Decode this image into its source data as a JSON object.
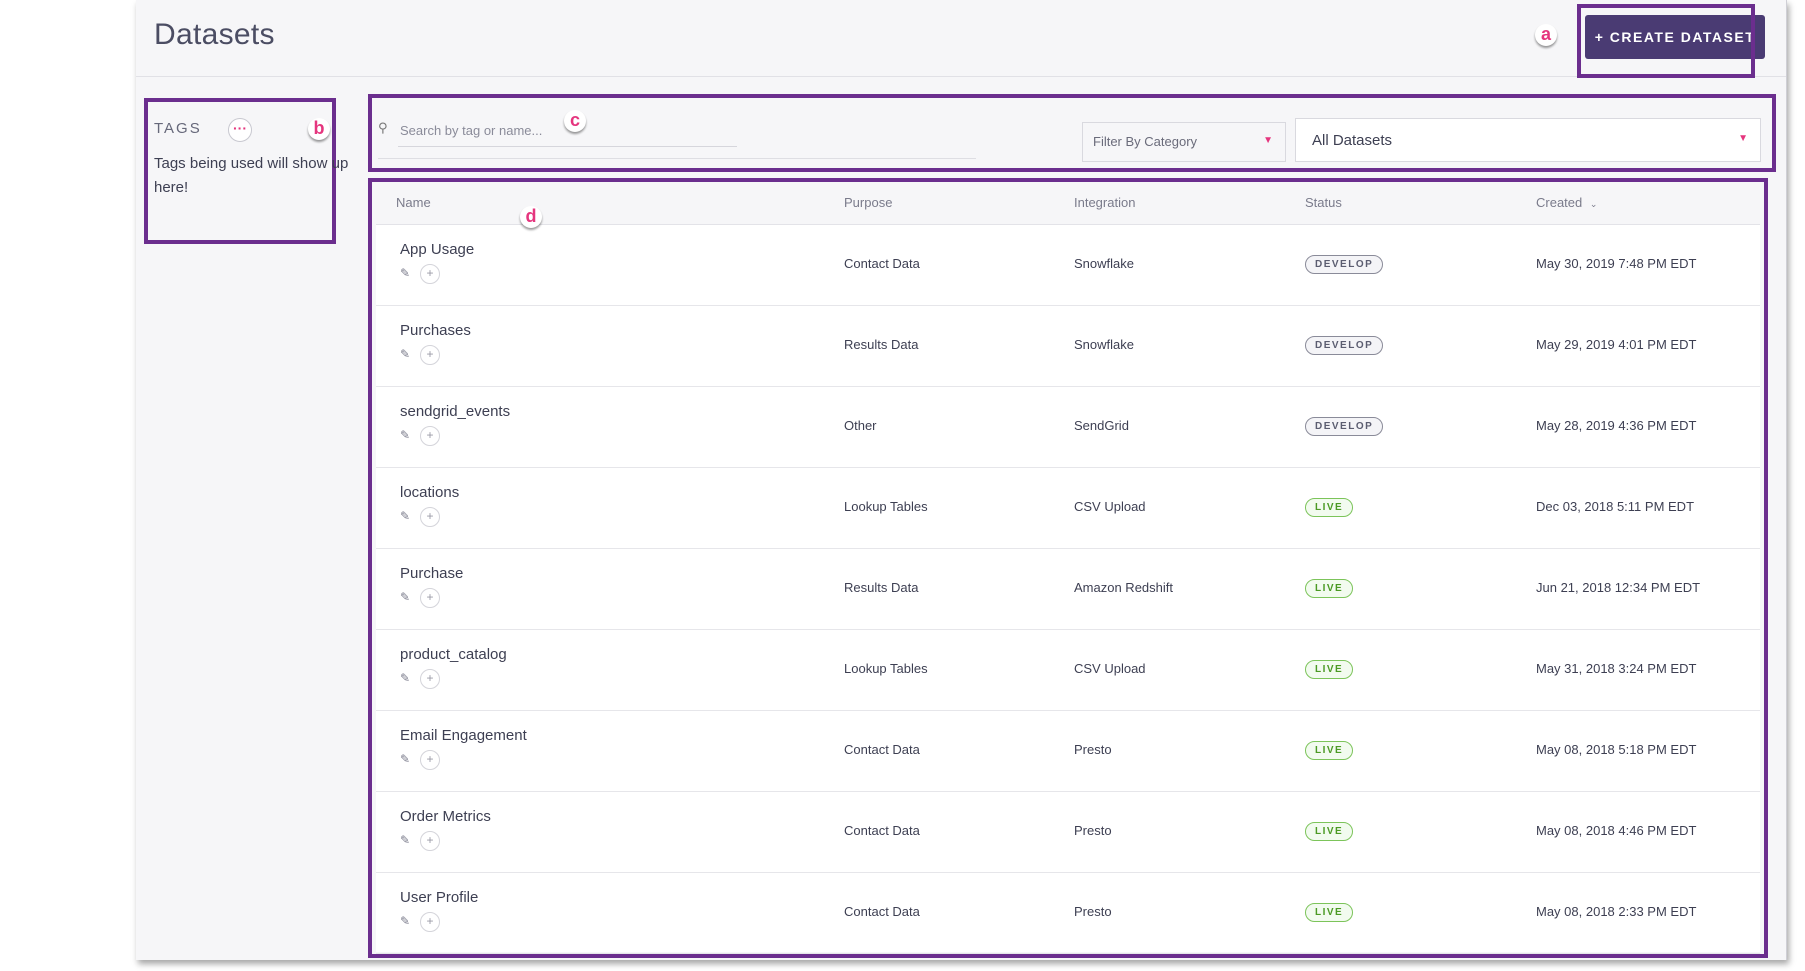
{
  "header": {
    "title": "Datasets",
    "create_label": "+ CREATE DATASET"
  },
  "markers": {
    "a": "a",
    "b": "b",
    "c": "c",
    "d": "d"
  },
  "tags": {
    "title": "TAGS",
    "more_label": "···",
    "empty_text": "Tags being used will show up here!"
  },
  "toolbar": {
    "search_placeholder": "Search by tag or name...",
    "category_filter": "Filter By Category",
    "dataset_filter": "All Datasets"
  },
  "table": {
    "columns": {
      "name": "Name",
      "purpose": "Purpose",
      "integration": "Integration",
      "status": "Status",
      "created": "Created"
    },
    "rows": [
      {
        "name": "App Usage",
        "purpose": "Contact Data",
        "integration": "Snowflake",
        "status": "DEVELOP",
        "created": "May 30, 2019 7:48 PM EDT"
      },
      {
        "name": "Purchases",
        "purpose": "Results Data",
        "integration": "Snowflake",
        "status": "DEVELOP",
        "created": "May 29, 2019 4:01 PM EDT"
      },
      {
        "name": "sendgrid_events",
        "purpose": "Other",
        "integration": "SendGrid",
        "status": "DEVELOP",
        "created": "May 28, 2019 4:36 PM EDT"
      },
      {
        "name": "locations",
        "purpose": "Lookup Tables",
        "integration": "CSV Upload",
        "status": "LIVE",
        "created": "Dec 03, 2018 5:11 PM EDT"
      },
      {
        "name": "Purchase",
        "purpose": "Results Data",
        "integration": "Amazon Redshift",
        "status": "LIVE",
        "created": "Jun 21, 2018 12:34 PM EDT"
      },
      {
        "name": "product_catalog",
        "purpose": "Lookup Tables",
        "integration": "CSV Upload",
        "status": "LIVE",
        "created": "May 31, 2018 3:24 PM EDT"
      },
      {
        "name": "Email Engagement",
        "purpose": "Contact Data",
        "integration": "Presto",
        "status": "LIVE",
        "created": "May 08, 2018 5:18 PM EDT"
      },
      {
        "name": "Order Metrics",
        "purpose": "Contact Data",
        "integration": "Presto",
        "status": "LIVE",
        "created": "May 08, 2018 4:46 PM EDT"
      },
      {
        "name": "User Profile",
        "purpose": "Contact Data",
        "integration": "Presto",
        "status": "LIVE",
        "created": "May 08, 2018 2:33 PM EDT"
      }
    ]
  },
  "colors": {
    "accent": "#4a3b73",
    "callout": "#6b2e8e",
    "marker": "#e5357e",
    "live": "#4b9a24"
  },
  "icons": {
    "search": "search-icon",
    "edit": "pencil-icon",
    "add": "plus-icon",
    "caret": "caret-down-icon",
    "sort": "chevron-down-icon"
  }
}
